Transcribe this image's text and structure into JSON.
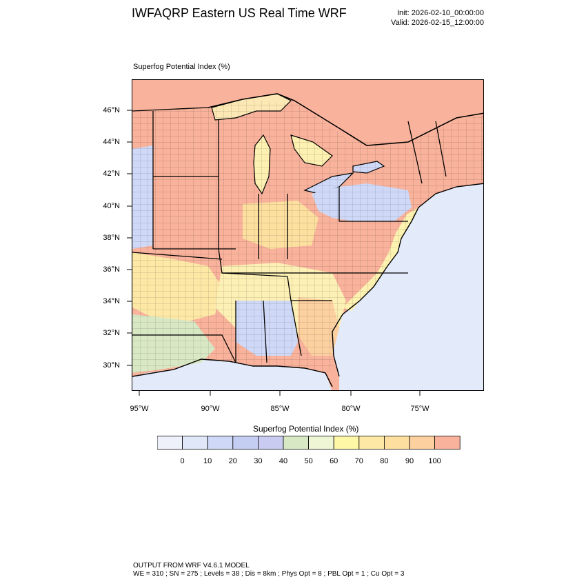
{
  "header": {
    "title": "IWFAQRP Eastern US Real Time WRF",
    "init": "Init: 2026-02-10_00:00:00",
    "valid": "Valid: 2026-02-15_12:00:00"
  },
  "field_label": "Superfog Potential Index   (%)",
  "map": {
    "lat_labels": [
      "46°N",
      "44°N",
      "42°N",
      "40°N",
      "38°N",
      "36°N",
      "34°N",
      "32°N",
      "30°N"
    ],
    "lon_labels": [
      "95°W",
      "90°W",
      "85°W",
      "80°W",
      "75°W"
    ]
  },
  "colorbar": {
    "title": "Superfog Potential Index  (%)",
    "labels": [
      "0",
      "10",
      "20",
      "30",
      "40",
      "50",
      "60",
      "70",
      "80",
      "90",
      "100"
    ],
    "colors": [
      "#eef1f9",
      "#dfe7f8",
      "#cfd9f7",
      "#c4cdf2",
      "#c9ccf0",
      "#d9e8c4",
      "#eef6d6",
      "#fdf7a6",
      "#fde8a6",
      "#fde0a0",
      "#fdd0a0",
      "#f9b29b"
    ]
  },
  "footer": {
    "line1": "OUTPUT FROM WRF V4.6.1 MODEL",
    "line2": "WE = 310 ; SN = 275 ; Levels = 38 ; Dis = 8km ; Phys Opt = 8 ; PBL Opt = 1 ; Cu Opt = 3"
  }
}
